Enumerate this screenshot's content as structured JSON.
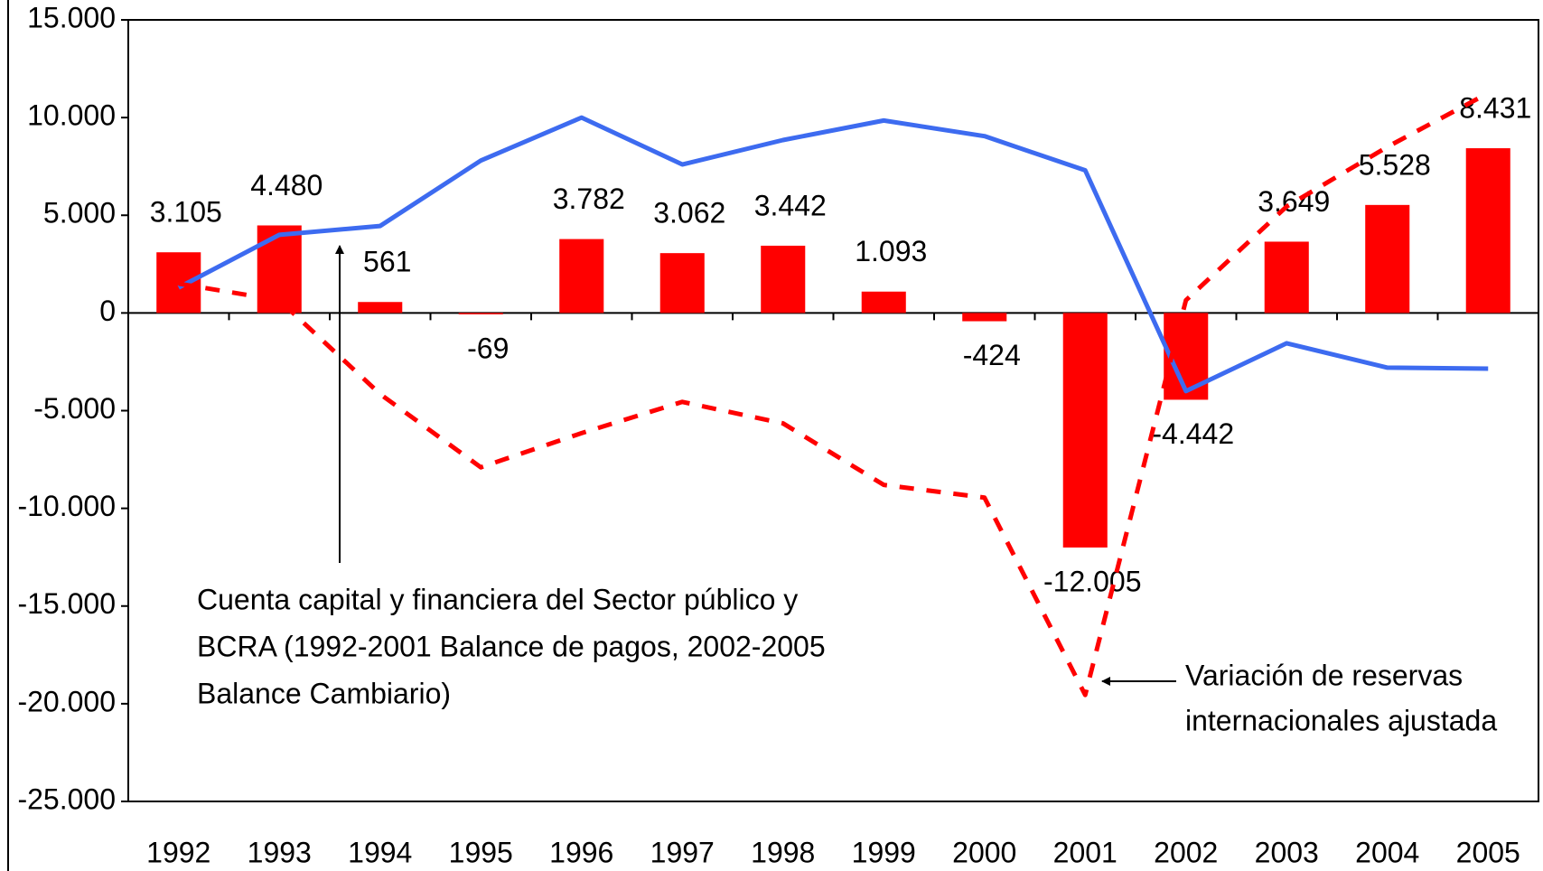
{
  "chart_data": {
    "type": "bar",
    "categories": [
      "1992",
      "1993",
      "1994",
      "1995",
      "1996",
      "1997",
      "1998",
      "1999",
      "2000",
      "2001",
      "2002",
      "2003",
      "2004",
      "2005"
    ],
    "series": [
      {
        "type": "bar",
        "color": "#ff0000",
        "values": [
          3105,
          4480,
          561,
          -69,
          3782,
          3062,
          3442,
          1093,
          -424,
          -12005,
          -4442,
          3649,
          5528,
          8431
        ],
        "value_labels": [
          "3.105",
          "4.480",
          "561",
          "-69",
          "3.782",
          "3.062",
          "3.442",
          "1.093",
          "-424",
          "-12.005",
          "-4.442",
          "3.649",
          "5.528",
          "8.431"
        ]
      },
      {
        "type": "line",
        "color": "#3d6bf0",
        "values": [
          1300,
          4000,
          4450,
          7800,
          10000,
          7600,
          8850,
          9850,
          9050,
          7300,
          -4000,
          -1550,
          -2800,
          -2850
        ]
      },
      {
        "type": "line",
        "dashed": true,
        "color": "#ff0000",
        "values": [
          1500,
          650,
          -4150,
          -7900,
          -6150,
          -4550,
          -5650,
          -8800,
          -9450,
          -19550,
          650,
          5450,
          8500,
          11250
        ]
      }
    ],
    "annotations": [
      {
        "lines": [
          "Cuenta capital y financiera del Sector público y",
          "BCRA (1992-2001 Balance de pagos, 2002-2005",
          "Balance Cambiario)"
        ]
      },
      {
        "lines": [
          "Variación de reservas",
          "internacionales ajustada"
        ]
      }
    ],
    "ylim": [
      -25000,
      15000
    ],
    "yticks": [
      {
        "value": -25000,
        "label": "-25.000"
      },
      {
        "value": -20000,
        "label": "-20.000"
      },
      {
        "value": -15000,
        "label": "-15.000"
      },
      {
        "value": -10000,
        "label": "-10.000"
      },
      {
        "value": -5000,
        "label": "-5.000"
      },
      0,
      {
        "value": 5000,
        "label": "5.000"
      },
      {
        "value": 10000,
        "label": "10.000"
      },
      {
        "value": 15000,
        "label": "15.000"
      }
    ]
  }
}
